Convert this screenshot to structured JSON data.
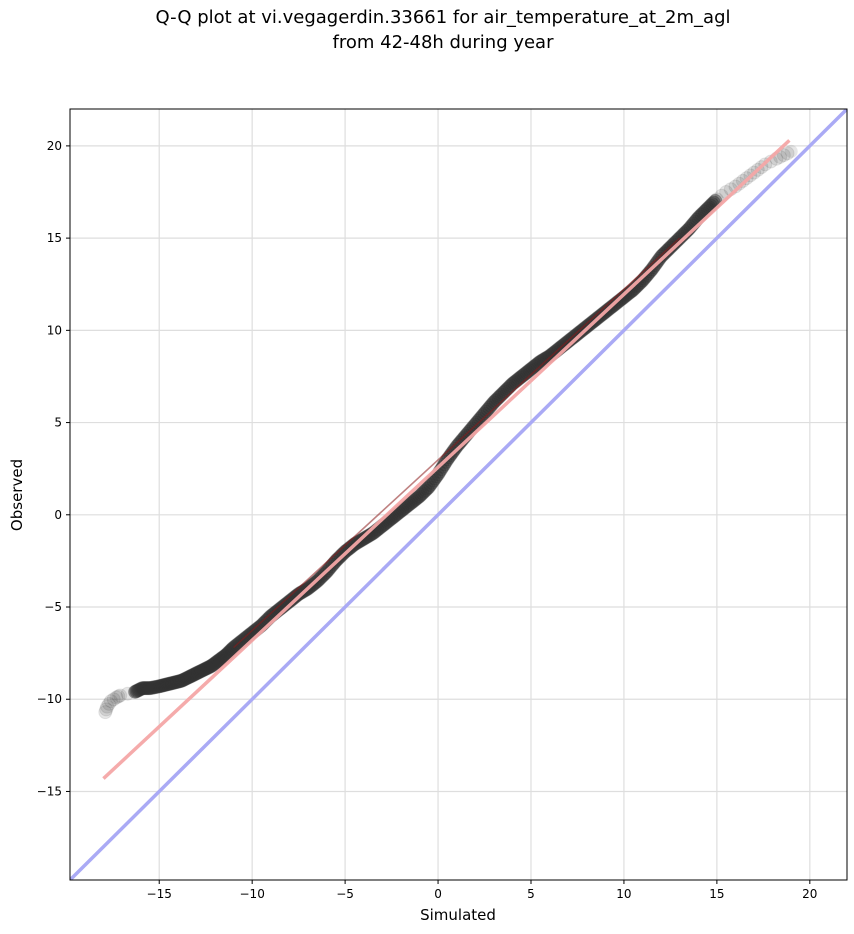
{
  "chart_data": {
    "type": "scatter",
    "title_lines": [
      "Q-Q plot at vi.vegagerdin.33661 for air_temperature_at_2m_agl",
      "from 42-48h during year"
    ],
    "xlabel": "Simulated",
    "ylabel": "Observed",
    "xlim": [
      -19.8,
      22.0
    ],
    "ylim": [
      -19.8,
      22.0
    ],
    "xticks": [
      -15,
      -10,
      -5,
      0,
      5,
      10,
      15,
      20
    ],
    "yticks": [
      -15,
      -10,
      -5,
      0,
      5,
      10,
      15,
      20
    ],
    "grid": true,
    "quantile_points": {
      "color": "#333333",
      "points": [
        [
          -17.9,
          -10.7
        ],
        [
          -17.8,
          -10.4
        ],
        [
          -17.6,
          -10.1
        ],
        [
          -17.3,
          -9.9
        ],
        [
          -17.1,
          -9.8
        ],
        [
          -16.3,
          -9.6
        ],
        [
          -15.9,
          -9.4
        ],
        [
          -15.5,
          -9.4
        ],
        [
          -15.0,
          -9.3
        ],
        [
          -14.6,
          -9.2
        ],
        [
          -14.2,
          -9.1
        ],
        [
          -13.8,
          -9.0
        ],
        [
          -13.4,
          -8.8
        ],
        [
          -13.0,
          -8.6
        ],
        [
          -12.6,
          -8.4
        ],
        [
          -12.2,
          -8.2
        ],
        [
          -11.8,
          -7.9
        ],
        [
          -11.4,
          -7.6
        ],
        [
          -11.0,
          -7.2
        ],
        [
          -10.5,
          -6.8
        ],
        [
          -10.0,
          -6.4
        ],
        [
          -9.5,
          -6.0
        ],
        [
          -9.0,
          -5.5
        ],
        [
          -8.5,
          -5.1
        ],
        [
          -8.0,
          -4.7
        ],
        [
          -7.5,
          -4.3
        ],
        [
          -7.0,
          -4.0
        ],
        [
          -6.5,
          -3.6
        ],
        [
          -6.0,
          -3.1
        ],
        [
          -5.5,
          -2.5
        ],
        [
          -5.0,
          -2.0
        ],
        [
          -4.5,
          -1.6
        ],
        [
          -4.0,
          -1.3
        ],
        [
          -3.5,
          -1.0
        ],
        [
          -3.0,
          -0.6
        ],
        [
          -2.5,
          -0.2
        ],
        [
          -2.0,
          0.2
        ],
        [
          -1.5,
          0.6
        ],
        [
          -1.0,
          1.0
        ],
        [
          -0.5,
          1.5
        ],
        [
          0.0,
          2.2
        ],
        [
          0.5,
          3.0
        ],
        [
          1.0,
          3.7
        ],
        [
          1.5,
          4.3
        ],
        [
          2.0,
          4.9
        ],
        [
          2.5,
          5.5
        ],
        [
          3.0,
          6.1
        ],
        [
          3.5,
          6.6
        ],
        [
          4.0,
          7.1
        ],
        [
          4.5,
          7.5
        ],
        [
          5.0,
          7.9
        ],
        [
          5.5,
          8.3
        ],
        [
          6.0,
          8.6
        ],
        [
          6.5,
          9.0
        ],
        [
          7.0,
          9.4
        ],
        [
          7.5,
          9.8
        ],
        [
          8.0,
          10.2
        ],
        [
          8.5,
          10.6
        ],
        [
          9.0,
          11.0
        ],
        [
          9.5,
          11.4
        ],
        [
          10.0,
          11.8
        ],
        [
          10.5,
          12.2
        ],
        [
          11.0,
          12.7
        ],
        [
          11.5,
          13.3
        ],
        [
          12.0,
          14.0
        ],
        [
          12.5,
          14.5
        ],
        [
          13.0,
          15.0
        ],
        [
          13.5,
          15.5
        ],
        [
          14.0,
          16.1
        ],
        [
          14.5,
          16.6
        ],
        [
          15.0,
          17.1
        ],
        [
          15.5,
          17.5
        ],
        [
          16.0,
          17.8
        ],
        [
          16.4,
          18.1
        ],
        [
          16.8,
          18.4
        ],
        [
          17.2,
          18.7
        ],
        [
          17.6,
          19.0
        ],
        [
          18.2,
          19.3
        ],
        [
          18.6,
          19.5
        ],
        [
          19.0,
          19.7
        ]
      ]
    },
    "fit_line": {
      "color": "#f4a6a6",
      "x": [
        -18.0,
        18.9
      ],
      "y": [
        -14.3,
        20.3
      ]
    },
    "identity_line": {
      "color": "#aaaaf5",
      "x": [
        -19.8,
        22.0
      ],
      "y": [
        -19.8,
        22.0
      ]
    }
  }
}
